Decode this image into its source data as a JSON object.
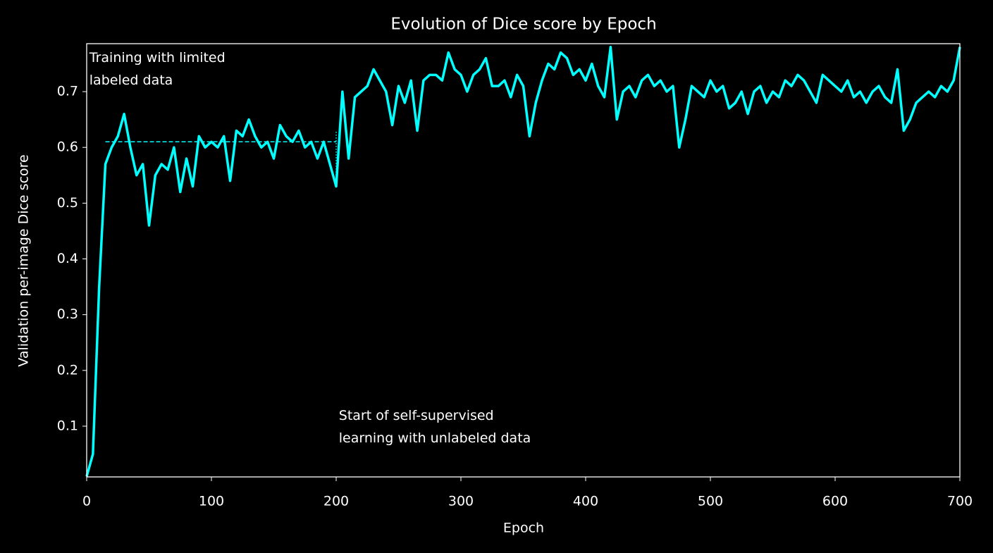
{
  "chart_data": {
    "type": "line",
    "title": "Evolution of Dice score by Epoch",
    "x_label": "Epoch",
    "y_label": "Validation per-image Dice score",
    "annotations": [
      {
        "lines": [
          "Training with limited",
          "labeled data"
        ],
        "x": 1,
        "y": 0.74
      },
      {
        "lines": [
          "Start of self-supervised",
          "learning with unlabeled data"
        ],
        "x": 201,
        "y": 0.098
      }
    ],
    "x": [
      0,
      5,
      10,
      15,
      20,
      25,
      30,
      35,
      40,
      45,
      50,
      55,
      60,
      65,
      70,
      75,
      80,
      85,
      90,
      95,
      100,
      105,
      110,
      115,
      120,
      125,
      130,
      135,
      140,
      145,
      150,
      155,
      160,
      165,
      170,
      175,
      180,
      185,
      190,
      195,
      200,
      205,
      210,
      215,
      220,
      225,
      230,
      235,
      240,
      245,
      250,
      255,
      260,
      265,
      270,
      275,
      280,
      285,
      290,
      295,
      300,
      305,
      310,
      315,
      320,
      325,
      330,
      335,
      340,
      345,
      350,
      355,
      360,
      365,
      370,
      375,
      380,
      385,
      390,
      395,
      400,
      405,
      410,
      415,
      420,
      425,
      430,
      435,
      440,
      445,
      450,
      455,
      460,
      465,
      470,
      475,
      480,
      485,
      490,
      495,
      500,
      505,
      510,
      515,
      520,
      525,
      530,
      535,
      540,
      545,
      550,
      555,
      560,
      565,
      570,
      575,
      580,
      585,
      590,
      595,
      600,
      605,
      610,
      615,
      620,
      625,
      630,
      635,
      640,
      645,
      650,
      655,
      660,
      665,
      670,
      675,
      680,
      685,
      690,
      695,
      700
    ],
    "series": [
      {
        "color": "#00ffff",
        "values": [
          0.01,
          0.05,
          0.35,
          0.57,
          0.6,
          0.62,
          0.66,
          0.6,
          0.55,
          0.57,
          0.46,
          0.55,
          0.57,
          0.56,
          0.6,
          0.52,
          0.58,
          0.53,
          0.62,
          0.6,
          0.61,
          0.6,
          0.62,
          0.54,
          0.63,
          0.62,
          0.65,
          0.62,
          0.6,
          0.61,
          0.58,
          0.64,
          0.62,
          0.61,
          0.63,
          0.6,
          0.61,
          0.58,
          0.61,
          0.57,
          0.53,
          0.7,
          0.58,
          0.69,
          0.7,
          0.71,
          0.74,
          0.72,
          0.7,
          0.64,
          0.71,
          0.68,
          0.72,
          0.63,
          0.72,
          0.73,
          0.73,
          0.72,
          0.77,
          0.74,
          0.73,
          0.7,
          0.73,
          0.74,
          0.76,
          0.71,
          0.71,
          0.72,
          0.69,
          0.73,
          0.71,
          0.62,
          0.68,
          0.72,
          0.75,
          0.74,
          0.77,
          0.76,
          0.73,
          0.74,
          0.72,
          0.75,
          0.71,
          0.69,
          0.78,
          0.65,
          0.7,
          0.71,
          0.69,
          0.72,
          0.73,
          0.71,
          0.72,
          0.7,
          0.71,
          0.6,
          0.65,
          0.71,
          0.7,
          0.69,
          0.72,
          0.7,
          0.71,
          0.67,
          0.68,
          0.7,
          0.66,
          0.7,
          0.71,
          0.68,
          0.7,
          0.69,
          0.72,
          0.71,
          0.73,
          0.72,
          0.7,
          0.68,
          0.73,
          0.72,
          0.71,
          0.7,
          0.72,
          0.69,
          0.7,
          0.68,
          0.7,
          0.71,
          0.69,
          0.68,
          0.74,
          0.63,
          0.65,
          0.68,
          0.69,
          0.7,
          0.69,
          0.71,
          0.7,
          0.72,
          0.78
        ]
      }
    ],
    "guides": [
      {
        "style": "dashed",
        "x": [
          15,
          200
        ],
        "y": [
          0.61,
          0.61
        ]
      },
      {
        "style": "dotted",
        "x": [
          200,
          200
        ],
        "y": [
          0.53,
          0.63
        ]
      }
    ],
    "xlim": [
      0,
      700
    ],
    "xticks": [
      0,
      100,
      200,
      300,
      400,
      500,
      600,
      700
    ],
    "ylim": [
      0.009,
      0.786
    ],
    "yticks": [
      0.1,
      0.2,
      0.3,
      0.4,
      0.5,
      0.6,
      0.7
    ],
    "background": "#000000",
    "foreground": "#ffffff"
  }
}
